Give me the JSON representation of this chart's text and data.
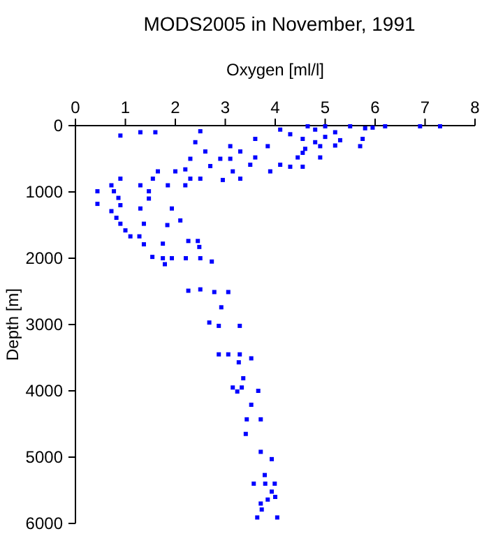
{
  "chart_data": {
    "type": "scatter",
    "title": "MODS2005 in November, 1991",
    "xlabel": "Oxygen [ml/l]",
    "ylabel": "Depth [m]",
    "xlim": [
      0,
      8
    ],
    "xticks": [
      0,
      1,
      2,
      3,
      4,
      5,
      6,
      7,
      8
    ],
    "ylim": [
      6000,
      0
    ],
    "yticks": [
      0,
      1000,
      2000,
      3000,
      4000,
      5000,
      6000
    ],
    "grid": false,
    "marker": "square",
    "series": [
      {
        "color": "#0000ff",
        "x": [
          0.9,
          1.3,
          1.6,
          2.5,
          2.4,
          2.3,
          2.6,
          2.9,
          3.1,
          3.1,
          3.3,
          3.6,
          3.6,
          3.85,
          4.1,
          4.3,
          4.65,
          4.8,
          5.0,
          5.2,
          5.5,
          5.8,
          5.95,
          6.2,
          6.9,
          7.3,
          4.55,
          4.8,
          5.0,
          5.3,
          5.75,
          5.7,
          4.9,
          4.6,
          5.2,
          4.55,
          4.9,
          4.45,
          4.3,
          4.55,
          4.1,
          3.5,
          2.7,
          2.2,
          1.65,
          2.0,
          3.15,
          3.9,
          2.5,
          2.95,
          3.3,
          0.9,
          1.55,
          2.3,
          0.72,
          1.3,
          1.85,
          2.2,
          0.44,
          0.77,
          1.47,
          0.86,
          1.47,
          0.44,
          0.9,
          1.3,
          1.93,
          0.72,
          0.82,
          0.9,
          1.37,
          1.84,
          2.1,
          1.0,
          1.1,
          1.28,
          1.37,
          1.75,
          2.26,
          2.45,
          2.48,
          1.54,
          1.75,
          1.93,
          2.21,
          1.79,
          2.5,
          2.73,
          2.26,
          2.5,
          2.78,
          3.06,
          2.92,
          2.68,
          2.87,
          3.29,
          2.87,
          3.06,
          3.29,
          3.52,
          3.27,
          3.36,
          3.15,
          3.33,
          3.66,
          3.24,
          3.52,
          3.43,
          3.71,
          3.41,
          3.71,
          3.93,
          3.79,
          3.57,
          3.8,
          3.99,
          3.93,
          4.0,
          3.85,
          3.71,
          3.73,
          3.64,
          4.04
        ],
        "values": [
          150,
          100,
          100,
          85,
          250,
          500,
          390,
          500,
          500,
          310,
          390,
          200,
          480,
          310,
          60,
          130,
          10,
          60,
          10,
          100,
          10,
          40,
          30,
          10,
          10,
          10,
          200,
          250,
          170,
          220,
          200,
          310,
          310,
          350,
          300,
          410,
          480,
          480,
          620,
          620,
          590,
          590,
          610,
          660,
          690,
          690,
          690,
          690,
          800,
          820,
          800,
          800,
          800,
          800,
          900,
          900,
          900,
          900,
          990,
          990,
          990,
          1090,
          1100,
          1180,
          1200,
          1250,
          1250,
          1290,
          1390,
          1480,
          1480,
          1500,
          1430,
          1580,
          1670,
          1670,
          1790,
          1780,
          1740,
          1740,
          1830,
          1980,
          2000,
          2000,
          2000,
          2090,
          2000,
          2050,
          2490,
          2470,
          2510,
          2510,
          2740,
          2970,
          3020,
          3020,
          3450,
          3450,
          3450,
          3510,
          3570,
          3810,
          3950,
          3950,
          4000,
          4010,
          4210,
          4430,
          4430,
          4650,
          4920,
          5030,
          5270,
          5400,
          5400,
          5400,
          5520,
          5600,
          5640,
          5700,
          5790,
          5910,
          5910
        ]
      }
    ]
  }
}
